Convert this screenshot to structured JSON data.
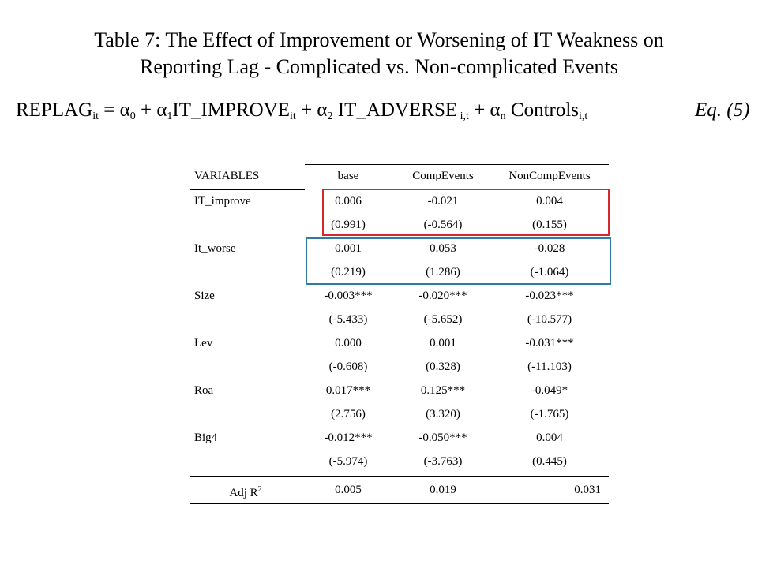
{
  "title": {
    "line1": "Table 7: The Effect of Improvement or Worsening of IT Weakness on",
    "line2": "Reporting Lag - Complicated vs. Non-complicated Events"
  },
  "equation": {
    "lhs": "REPLAG",
    "lhs_sub": "it",
    "eq": " = α",
    "a0_sub": "0",
    "plus1": " + α",
    "a1_sub": "1",
    "term1": "IT_IMPROVE",
    "term1_sub": "it",
    "plus2": " + α",
    "a2_sub": "2",
    "term2": " IT_ADVERSE",
    "term2_sub": " i,t",
    "plus3": " +  α",
    "an_sub": "n",
    "term3": " Controls",
    "term3_sub": "i,t",
    "label": "Eq. (5)"
  },
  "table": {
    "headers": [
      "VARIABLES",
      "base",
      "CompEvents",
      "NonCompEvents"
    ],
    "rows": [
      [
        "IT_improve",
        "0.006",
        "-0.021",
        "0.004"
      ],
      [
        "",
        "(0.991)",
        "(-0.564)",
        "(0.155)"
      ],
      [
        "It_worse",
        "0.001",
        "0.053",
        "-0.028"
      ],
      [
        "",
        "(0.219)",
        "(1.286)",
        "(-1.064)"
      ],
      [
        "Size",
        "-0.003***",
        "-0.020***",
        "-0.023***"
      ],
      [
        "",
        "(-5.433)",
        "(-5.652)",
        "(-10.577)"
      ],
      [
        "Lev",
        "0.000",
        "0.001",
        "-0.031***"
      ],
      [
        "",
        "(-0.608)",
        "(0.328)",
        "(-11.103)"
      ],
      [
        "Roa",
        "0.017***",
        "0.125***",
        "-0.049*"
      ],
      [
        "",
        "(2.756)",
        "(3.320)",
        "(-1.765)"
      ],
      [
        "Big4",
        "-0.012***",
        "-0.050***",
        "0.004"
      ],
      [
        "",
        "(-5.974)",
        "(-3.763)",
        "(0.445)"
      ]
    ],
    "adj": {
      "label": "Adj R",
      "sup": "2",
      "values": [
        "0.005",
        "0.019",
        "0.031"
      ]
    },
    "highlight_colors": {
      "improve_box": "#d9262c",
      "worse_box": "#2e7ca6"
    }
  }
}
